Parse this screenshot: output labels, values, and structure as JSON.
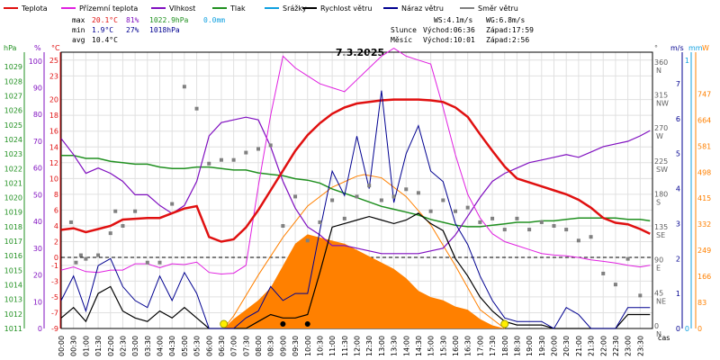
{
  "legend": [
    {
      "key": "temp",
      "label": "Teplota",
      "color": "#e01010"
    },
    {
      "key": "dew",
      "label": "Přízemní teplota",
      "color": "#e020e0"
    },
    {
      "key": "hum",
      "label": "Vlhkost",
      "color": "#8010c0"
    },
    {
      "key": "press",
      "label": "Tlak",
      "color": "#209020"
    },
    {
      "key": "rain",
      "label": "Srážky",
      "color": "#10a0e0"
    },
    {
      "key": "wind",
      "label": "Rychlost větru",
      "color": "#000000"
    },
    {
      "key": "gust",
      "label": "Náraz větru",
      "color": "#000090"
    },
    {
      "key": "dir",
      "label": "Směr větru",
      "color": "#808080"
    }
  ],
  "stats": {
    "max_label": "max",
    "max_temp": "20.1°C",
    "max_hum": "81%",
    "max_press": "1022.9hPa",
    "max_rain": "0.0mm",
    "min_label": "min",
    "min_temp": "1.9°C",
    "min_hum": "27%",
    "min_press": "1018hPa",
    "avg_label": "avg",
    "avg_temp": "10.4°C"
  },
  "wind_stats": {
    "ws": "WS:4.1m/s",
    "wg": "WG:6.8m/s"
  },
  "sun": {
    "label": "Slunce",
    "rise": "Východ:06:36",
    "set": "Západ:17:59"
  },
  "moon": {
    "label": "Měsíc",
    "rise": "Východ:10:01",
    "set": "Západ:2:56"
  },
  "date": "7.3.2025",
  "axis_titles": {
    "hpa": "hPa",
    "pct": "%",
    "degc": "°C",
    "deg": "°",
    "ms": "m/s",
    "mm": "mm",
    "wm2": "W",
    "time": "čas"
  },
  "colors": {
    "temp": "#e01010",
    "dew": "#e020e0",
    "hum": "#8010c0",
    "press": "#209020",
    "rain": "#10a0e0",
    "wind": "#000000",
    "gust": "#000090",
    "dir": "#808080",
    "solar": "#ff8000",
    "grid": "#e0e0e0"
  },
  "chart_data": {
    "type": "line",
    "title": "7.3.2025",
    "x_label": "čas",
    "x_ticks": [
      "00:00",
      "00:30",
      "01:00",
      "01:30",
      "02:00",
      "02:30",
      "03:00",
      "03:30",
      "04:00",
      "04:30",
      "05:00",
      "05:30",
      "06:00",
      "06:30",
      "07:00",
      "07:30",
      "08:00",
      "08:30",
      "09:00",
      "09:30",
      "10:00",
      "10:30",
      "11:00",
      "11:30",
      "12:00",
      "12:30",
      "13:00",
      "13:30",
      "14:00",
      "14:30",
      "15:00",
      "15:30",
      "16:00",
      "16:30",
      "17:00",
      "17:30",
      "18:00",
      "18:30",
      "19:00",
      "19:30",
      "20:00",
      "20:30",
      "21:00",
      "21:30",
      "22:00",
      "22:30",
      "23:00",
      "23:30"
    ],
    "axes": {
      "pressure_hpa": {
        "range": [
          1011,
          1030
        ],
        "ticks": [
          1011,
          1012,
          1013,
          1014,
          1015,
          1016,
          1017,
          1018,
          1019,
          1020,
          1021,
          1022,
          1023,
          1024,
          1025,
          1026,
          1027,
          1028,
          1029
        ]
      },
      "humidity_pct": {
        "range": [
          0,
          103.3
        ],
        "ticks": [
          0,
          10,
          20,
          30,
          40,
          50,
          60,
          70,
          80,
          90,
          100
        ]
      },
      "temperature_c": {
        "range": [
          -9,
          26
        ],
        "ticks": [
          -9,
          -7,
          -5,
          -3,
          -1,
          0,
          2,
          4,
          6,
          8,
          10,
          12,
          14,
          16,
          18,
          20,
          23,
          25
        ]
      },
      "direction_deg": {
        "range": [
          0,
          377
        ],
        "ticks": [
          0,
          45,
          90,
          135,
          180,
          225,
          270,
          315,
          360
        ],
        "labels": [
          "N",
          "NE",
          "E",
          "SE",
          "S",
          "SW",
          "W",
          "NW",
          "N"
        ]
      },
      "wind_ms": {
        "range": [
          0,
          7.9
        ],
        "ticks": [
          0,
          1,
          2,
          3,
          4,
          5,
          6,
          7
        ]
      },
      "rain_mm": {
        "range": [
          0,
          1.03
        ],
        "ticks": [
          0,
          1
        ]
      },
      "solar_w": {
        "range": [
          0,
          880
        ],
        "ticks": [
          0,
          83,
          166,
          249,
          332,
          415,
          498,
          581,
          664,
          747
        ]
      }
    },
    "series": [
      {
        "name": "Teplota",
        "key": "temp",
        "x": [
          0,
          0.5,
          1,
          1.5,
          2,
          2.5,
          3,
          3.5,
          4,
          4.5,
          5,
          5.5,
          6,
          6.5,
          7,
          7.5,
          8,
          8.5,
          9,
          9.5,
          10,
          10.5,
          11,
          11.5,
          12,
          12.5,
          13,
          13.5,
          14,
          14.5,
          15,
          15.5,
          16,
          16.5,
          17,
          17.5,
          18,
          18.5,
          19,
          19.5,
          20,
          20.5,
          21,
          21.5,
          22,
          22.5,
          23,
          23.5,
          23.9
        ],
        "y": [
          3.5,
          3.7,
          3.2,
          3.6,
          4.0,
          4.8,
          4.9,
          5.0,
          5.0,
          5.6,
          6.2,
          6.5,
          2.6,
          2.0,
          2.3,
          3.8,
          6.0,
          8.5,
          11.0,
          13.5,
          15.5,
          17.0,
          18.2,
          19.0,
          19.5,
          19.7,
          19.9,
          20.0,
          20.0,
          20.0,
          19.9,
          19.7,
          19.0,
          17.8,
          15.6,
          13.5,
          11.5,
          10.0,
          9.5,
          9.0,
          8.5,
          8.0,
          7.3,
          6.3,
          5.0,
          4.4,
          4.2,
          3.6,
          3.0
        ]
      },
      {
        "name": "Přízemní teplota",
        "key": "dew",
        "x": [
          0,
          0.5,
          1,
          1.5,
          2,
          2.5,
          3,
          3.5,
          4,
          4.5,
          5,
          5.5,
          6,
          6.5,
          7,
          7.5,
          8,
          8.5,
          9,
          9.5,
          10,
          10.5,
          11,
          11.5,
          12,
          12.5,
          13,
          13.5,
          14,
          14.5,
          15,
          15.5,
          16,
          16.5,
          17,
          17.5,
          18,
          18.5,
          19,
          19.5,
          20,
          20.5,
          21,
          21.5,
          22,
          22.5,
          23,
          23.5,
          23.9
        ],
        "y": [
          -1.6,
          -1.2,
          -1.8,
          -1.9,
          -1.6,
          -1.6,
          -0.8,
          -0.8,
          -1.3,
          -0.8,
          -0.9,
          -0.6,
          -1.9,
          -2.1,
          -2.0,
          -1.0,
          9.0,
          18.0,
          25.5,
          24.0,
          23.0,
          22.0,
          21.5,
          21.0,
          22.5,
          24.0,
          25.5,
          26.5,
          25.5,
          25.0,
          24.5,
          19.0,
          13.0,
          8.0,
          5.0,
          3.0,
          2.0,
          1.5,
          1.0,
          0.5,
          0.3,
          0.2,
          0.0,
          -0.3,
          -0.5,
          -0.7,
          -1.0,
          -1.2,
          -1.0
        ]
      },
      {
        "name": "Vlhkost",
        "key": "hum",
        "x": [
          0,
          0.5,
          1,
          1.5,
          2,
          2.5,
          3,
          3.5,
          4,
          4.5,
          5,
          5.5,
          6,
          6.5,
          7,
          7.5,
          8,
          8.5,
          9,
          9.5,
          10,
          10.5,
          11,
          11.5,
          12,
          12.5,
          13,
          13.5,
          14,
          14.5,
          15,
          15.5,
          16,
          16.5,
          17,
          17.5,
          18,
          18.5,
          19,
          19.5,
          20,
          20.5,
          21,
          21.5,
          22,
          22.5,
          23,
          23.5,
          23.9
        ],
        "y": [
          71,
          65,
          58,
          60,
          58,
          55,
          50,
          50,
          46,
          43,
          46,
          55,
          72,
          77,
          78,
          79,
          78,
          68,
          55,
          45,
          38,
          35,
          31,
          31,
          30,
          29,
          28,
          28,
          28,
          28,
          29,
          30,
          35,
          42,
          49,
          55,
          58,
          60,
          62,
          63,
          64,
          65,
          64,
          66,
          68,
          69,
          70,
          72,
          74
        ]
      },
      {
        "name": "Tlak",
        "key": "press",
        "x": [
          0,
          0.5,
          1,
          1.5,
          2,
          2.5,
          3,
          3.5,
          4,
          4.5,
          5,
          5.5,
          6,
          6.5,
          7,
          7.5,
          8,
          8.5,
          9,
          9.5,
          10,
          10.5,
          11,
          11.5,
          12,
          12.5,
          13,
          13.5,
          14,
          14.5,
          15,
          15.5,
          16,
          16.5,
          17,
          17.5,
          18,
          18.5,
          19,
          19.5,
          20,
          20.5,
          21,
          21.5,
          22,
          22.5,
          23,
          23.5,
          23.9
        ],
        "y": [
          1022.9,
          1022.9,
          1022.7,
          1022.7,
          1022.5,
          1022.4,
          1022.3,
          1022.3,
          1022.1,
          1022.0,
          1022.0,
          1022.1,
          1022.1,
          1022.0,
          1021.9,
          1021.9,
          1021.7,
          1021.6,
          1021.5,
          1021.3,
          1021.2,
          1021.0,
          1020.6,
          1020.3,
          1020.0,
          1019.7,
          1019.4,
          1019.2,
          1019.0,
          1018.8,
          1018.5,
          1018.3,
          1018.1,
          1018.0,
          1018.0,
          1018.1,
          1018.2,
          1018.3,
          1018.3,
          1018.4,
          1018.4,
          1018.5,
          1018.6,
          1018.6,
          1018.6,
          1018.6,
          1018.5,
          1018.5,
          1018.4
        ]
      },
      {
        "name": "Rychlost větru",
        "key": "wind",
        "x": [
          0,
          0.5,
          1,
          1.5,
          2,
          2.5,
          3,
          3.5,
          4,
          4.5,
          5,
          5.5,
          6,
          6.5,
          7,
          7.5,
          8,
          8.5,
          9,
          9.5,
          10,
          10.5,
          11,
          11.5,
          12,
          12.5,
          13,
          13.5,
          14,
          14.5,
          15,
          15.5,
          16,
          16.5,
          17,
          17.5,
          18,
          18.5,
          19,
          19.5,
          20,
          20.5,
          21,
          21.5,
          22,
          22.5,
          23,
          23.5,
          23.9
        ],
        "y": [
          0.3,
          0.6,
          0.2,
          1.0,
          1.2,
          0.5,
          0.3,
          0.2,
          0.5,
          0.3,
          0.6,
          0.3,
          0.0,
          0.0,
          0.0,
          0.0,
          0.2,
          0.4,
          0.3,
          0.3,
          0.4,
          1.6,
          2.9,
          3.0,
          3.1,
          3.2,
          3.1,
          3.0,
          3.1,
          3.3,
          3.0,
          2.8,
          2.0,
          1.5,
          0.9,
          0.5,
          0.2,
          0.1,
          0.1,
          0.1,
          0.0,
          0.0,
          0.0,
          0.0,
          0.0,
          0.0,
          0.4,
          0.4,
          0.4
        ]
      },
      {
        "name": "Náraz větru",
        "key": "gust",
        "x": [
          0,
          0.5,
          1,
          1.5,
          2,
          2.5,
          3,
          3.5,
          4,
          4.5,
          5,
          5.5,
          6,
          6.5,
          7,
          7.5,
          8,
          8.5,
          9,
          9.5,
          10,
          10.5,
          11,
          11.5,
          12,
          12.5,
          13,
          13.5,
          14,
          14.5,
          15,
          15.5,
          16,
          16.5,
          17,
          17.5,
          18,
          18.5,
          19,
          19.5,
          20,
          20.5,
          21,
          21.5,
          22,
          22.5,
          23,
          23.5,
          23.9
        ],
        "y": [
          0.8,
          1.5,
          0.5,
          1.8,
          2.0,
          1.2,
          0.8,
          0.6,
          1.5,
          0.8,
          1.6,
          1.0,
          0.0,
          0.0,
          0.0,
          0.3,
          0.5,
          1.2,
          0.8,
          1.0,
          1.0,
          2.8,
          4.5,
          3.8,
          5.5,
          4.0,
          6.8,
          3.6,
          5.0,
          5.8,
          4.5,
          4.2,
          3.0,
          2.4,
          1.5,
          0.8,
          0.3,
          0.2,
          0.2,
          0.2,
          0.0,
          0.6,
          0.4,
          0.0,
          0.0,
          0.0,
          0.6,
          0.6,
          0.6
        ]
      },
      {
        "name": "Směr větru",
        "key": "dir",
        "x": [
          0.4,
          0.6,
          0.8,
          1.0,
          1.5,
          2.0,
          2.2,
          2.5,
          3.0,
          3.5,
          4.0,
          4.5,
          5.0,
          5.5,
          6.0,
          6.5,
          7.0,
          7.5,
          8.0,
          8.5,
          9.0,
          9.5,
          10.0,
          10.5,
          11.0,
          11.5,
          12.0,
          12.5,
          13.0,
          13.5,
          14.0,
          14.5,
          15.0,
          15.5,
          16.0,
          16.5,
          17.0,
          17.5,
          18.0,
          18.5,
          19.0,
          19.5,
          20.0,
          20.5,
          21.0,
          21.5,
          22.0,
          22.5,
          23.0,
          23.5
        ],
        "y": [
          145,
          90,
          100,
          95,
          100,
          130,
          160,
          140,
          160,
          90,
          90,
          170,
          330,
          300,
          225,
          230,
          230,
          240,
          245,
          250,
          140,
          180,
          120,
          145,
          175,
          150,
          180,
          195,
          175,
          180,
          190,
          185,
          160,
          175,
          160,
          165,
          145,
          150,
          135,
          150,
          135,
          145,
          140,
          135,
          120,
          125,
          75,
          60,
          95,
          45
        ]
      }
    ],
    "solar": {
      "name": "Solar",
      "x": [
        6.6,
        7,
        7.5,
        8,
        8.5,
        9,
        9.5,
        10,
        10.5,
        11,
        11.5,
        12,
        12.5,
        13,
        13.5,
        14,
        14.5,
        15,
        15.5,
        16,
        16.5,
        17,
        17.5,
        18
      ],
      "y": [
        0,
        30,
        60,
        90,
        130,
        200,
        270,
        300,
        290,
        280,
        270,
        250,
        230,
        210,
        190,
        160,
        120,
        100,
        90,
        70,
        60,
        30,
        10,
        0
      ]
    },
    "clear_sky": {
      "name": "Theoretical solar",
      "x": [
        6.6,
        7,
        8,
        9,
        10,
        11,
        12,
        12.3,
        13,
        14,
        15,
        16,
        17,
        18
      ],
      "y": [
        0,
        40,
        170,
        290,
        390,
        450,
        485,
        490,
        480,
        420,
        330,
        200,
        60,
        0
      ]
    },
    "sun_markers": [
      {
        "x": 6.6,
        "y": 0
      },
      {
        "x": 18.0,
        "y": 0
      }
    ],
    "moon_markers": [
      {
        "x": 9.0,
        "y": 0
      },
      {
        "x": 10.0,
        "y": 0
      }
    ]
  }
}
